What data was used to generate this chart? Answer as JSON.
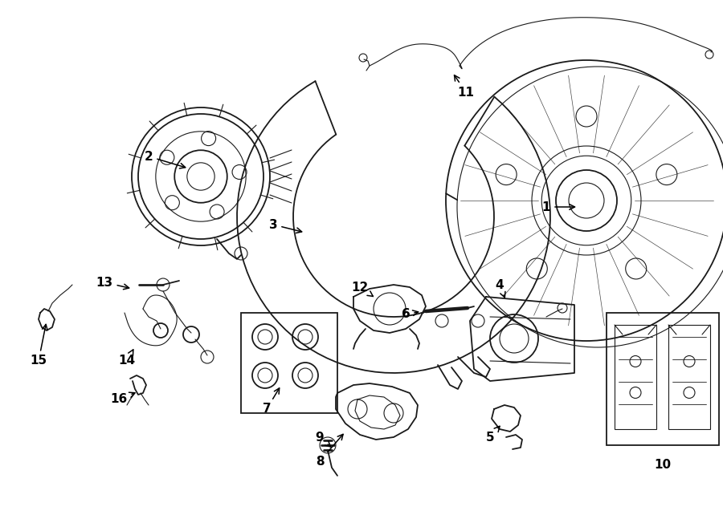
{
  "bg_color": "#ffffff",
  "line_color": "#1a1a1a",
  "fig_width": 9.0,
  "fig_height": 6.62,
  "dpi": 100,
  "lw": 1.3
}
